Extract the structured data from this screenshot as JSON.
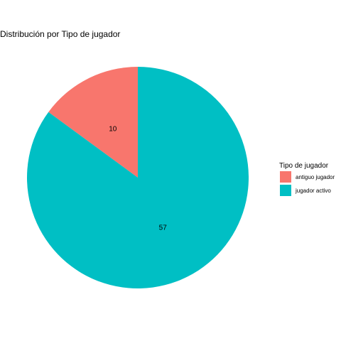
{
  "chart_data": {
    "type": "pie",
    "title": "Distribución por Tipo de jugador",
    "slices": [
      {
        "label": "antiguo jugador",
        "value": 10,
        "color": "#F8766D"
      },
      {
        "label": "jugador activo",
        "value": 57,
        "color": "#00BFC4"
      }
    ],
    "legend": {
      "title": "Tipo de jugador",
      "placement": "right"
    },
    "start_angle_deg": 0,
    "direction": "counterclockwise"
  }
}
